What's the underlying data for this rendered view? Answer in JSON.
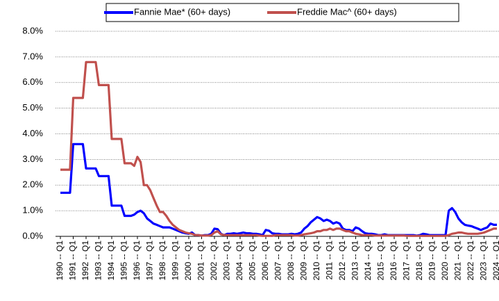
{
  "chart_data": {
    "type": "line",
    "categories": [
      "1990 -- Q1",
      null,
      null,
      null,
      "1991 -- Q1",
      null,
      null,
      null,
      "1992 -- Q1",
      null,
      null,
      null,
      "1993 -- Q1",
      null,
      null,
      null,
      "1994 -- Q1",
      null,
      null,
      null,
      "1995 -- Q1",
      null,
      null,
      null,
      "1996 -- Q1",
      null,
      null,
      null,
      "1997 -- Q1",
      null,
      null,
      null,
      "1998 -- Q1",
      null,
      null,
      null,
      "1999 -- Q1",
      null,
      null,
      null,
      "2000 -- Q1",
      null,
      null,
      null,
      "2001 -- Q1",
      null,
      null,
      null,
      "2002 -- Q1",
      null,
      null,
      null,
      "2003 -- Q1",
      null,
      null,
      null,
      "2004 -- Q1",
      null,
      null,
      null,
      "2005 -- Q1",
      null,
      null,
      null,
      "2006 -- Q1",
      null,
      null,
      null,
      "2007 -- Q1",
      null,
      null,
      null,
      "2008 -- Q1",
      null,
      null,
      null,
      "2009 -- Q1",
      null,
      null,
      null,
      "2010 -- Q1",
      null,
      null,
      null,
      "2011 -- Q1",
      null,
      null,
      null,
      "2012 -- Q1",
      null,
      null,
      null,
      "2013 -- Q1",
      null,
      null,
      null,
      "2014 -- Q1",
      null,
      null,
      null,
      "2015 -- Q1",
      null,
      null,
      null,
      "2016 -- Q1",
      null,
      null,
      null,
      "2017 -- Q1",
      null,
      null,
      null,
      "2018 -- Q1",
      null,
      null,
      null,
      "2019 -- Q1",
      null,
      null,
      null,
      "2020 -- Q1",
      null,
      null,
      null,
      "2021 -- Q1",
      null,
      null,
      null,
      "2022 -- Q1",
      null,
      null,
      null,
      "2023 -- Q1",
      null,
      null,
      null,
      "2024 -- Q1"
    ],
    "series": [
      {
        "name": "Fannie Mae* (60+ days)",
        "color": "#0000ff",
        "values": [
          1.7,
          1.7,
          1.7,
          1.7,
          3.6,
          3.6,
          3.6,
          3.6,
          2.65,
          2.65,
          2.65,
          2.65,
          2.35,
          2.35,
          2.35,
          2.35,
          1.2,
          1.2,
          1.2,
          1.2,
          0.8,
          0.8,
          0.8,
          0.85,
          0.95,
          1.0,
          0.9,
          0.7,
          0.6,
          0.5,
          0.45,
          0.4,
          0.35,
          0.35,
          0.35,
          0.3,
          0.25,
          0.2,
          0.15,
          0.12,
          0.1,
          0.15,
          0.05,
          0.05,
          0.03,
          0.05,
          0.05,
          0.1,
          0.3,
          0.28,
          0.1,
          0.05,
          0.1,
          0.1,
          0.12,
          0.1,
          0.12,
          0.15,
          0.12,
          0.12,
          0.1,
          0.1,
          0.08,
          0.05,
          0.25,
          0.22,
          0.12,
          0.1,
          0.1,
          0.08,
          0.08,
          0.08,
          0.1,
          0.08,
          0.1,
          0.15,
          0.3,
          0.4,
          0.55,
          0.65,
          0.75,
          0.7,
          0.6,
          0.65,
          0.6,
          0.5,
          0.55,
          0.5,
          0.3,
          0.25,
          0.25,
          0.2,
          0.35,
          0.3,
          0.2,
          0.12,
          0.1,
          0.1,
          0.08,
          0.05,
          0.05,
          0.08,
          0.05,
          0.05,
          0.05,
          0.05,
          0.05,
          0.05,
          0.05,
          0.05,
          0.05,
          0.03,
          0.05,
          0.1,
          0.08,
          0.05,
          0.05,
          0.05,
          0.05,
          0.05,
          0.05,
          1.0,
          1.1,
          0.95,
          0.7,
          0.55,
          0.45,
          0.42,
          0.4,
          0.35,
          0.3,
          0.25,
          0.3,
          0.35,
          0.5,
          0.45,
          0.45
        ]
      },
      {
        "name": "Freddie Mac^ (60+ days)",
        "color": "#c0504d",
        "values": [
          2.6,
          2.6,
          2.6,
          2.6,
          5.4,
          5.4,
          5.4,
          5.4,
          6.8,
          6.8,
          6.8,
          6.8,
          5.9,
          5.9,
          5.9,
          5.9,
          3.8,
          3.8,
          3.8,
          3.8,
          2.85,
          2.85,
          2.85,
          2.75,
          3.1,
          2.9,
          2.0,
          2.0,
          1.8,
          1.5,
          1.2,
          0.95,
          0.95,
          0.8,
          0.6,
          0.45,
          0.35,
          0.25,
          0.2,
          0.15,
          0.12,
          0.1,
          0.05,
          0.05,
          0.03,
          0.03,
          0.03,
          0.05,
          0.15,
          0.2,
          0.08,
          0.05,
          0.05,
          0.05,
          0.05,
          0.05,
          0.05,
          0.05,
          0.05,
          0.05,
          0.05,
          0.05,
          0.03,
          0.02,
          0.02,
          0.02,
          0.02,
          0.05,
          0.05,
          0.05,
          0.05,
          0.05,
          0.05,
          0.03,
          0.03,
          0.05,
          0.08,
          0.1,
          0.12,
          0.15,
          0.2,
          0.2,
          0.25,
          0.25,
          0.3,
          0.25,
          0.3,
          0.3,
          0.25,
          0.2,
          0.2,
          0.15,
          0.1,
          0.08,
          0.05,
          0.05,
          0.05,
          0.05,
          0.03,
          0.03,
          0.03,
          0.03,
          0.03,
          0.03,
          0.03,
          0.03,
          0.03,
          0.03,
          0.02,
          0.02,
          0.02,
          0.02,
          0.02,
          0.02,
          0.02,
          0.02,
          0.02,
          0.02,
          0.02,
          0.02,
          0.02,
          0.05,
          0.1,
          0.12,
          0.15,
          0.15,
          0.12,
          0.1,
          0.1,
          0.1,
          0.1,
          0.12,
          0.15,
          0.2,
          0.25,
          0.3,
          0.3
        ]
      }
    ],
    "ylim": [
      0,
      8
    ],
    "yticks": [
      {
        "value": 0,
        "label": "0.0%"
      },
      {
        "value": 1,
        "label": "1.0%"
      },
      {
        "value": 2,
        "label": "2.0%"
      },
      {
        "value": 3,
        "label": "3.0%"
      },
      {
        "value": 4,
        "label": "4.0%"
      },
      {
        "value": 5,
        "label": "5.0%"
      },
      {
        "value": 6,
        "label": "6.0%"
      },
      {
        "value": 7,
        "label": "7.0%"
      },
      {
        "value": 8,
        "label": "8.0%"
      }
    ],
    "grid": true,
    "legend": "top"
  }
}
